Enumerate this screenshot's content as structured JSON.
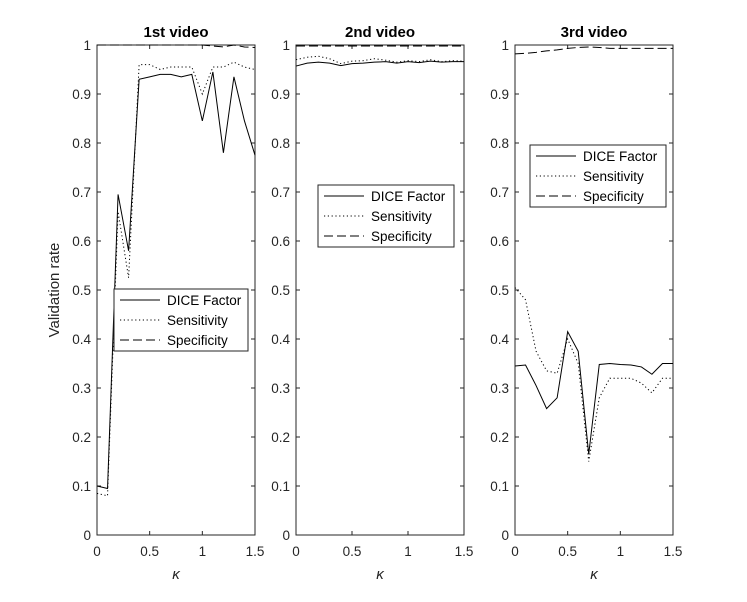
{
  "figure": {
    "ylabel": "Validation rate"
  },
  "chart_data": [
    {
      "type": "line",
      "title": "1st video",
      "xlabel": "κ",
      "xlim": [
        0,
        1.5
      ],
      "ylim": [
        0,
        1
      ],
      "xticks": [
        "0",
        "0.5",
        "1",
        "1.5"
      ],
      "yticks": [
        "0",
        "0.1",
        "0.2",
        "0.3",
        "0.4",
        "0.5",
        "0.6",
        "0.7",
        "0.8",
        "0.9",
        "1"
      ],
      "legend_position": "lower-right",
      "series": [
        {
          "name": "DICE Factor",
          "style": "solid",
          "x": [
            0,
            0.1,
            0.2,
            0.3,
            0.4,
            0.5,
            0.6,
            0.7,
            0.8,
            0.9,
            1.0,
            1.1,
            1.2,
            1.3,
            1.4,
            1.5
          ],
          "y": [
            0.1,
            0.095,
            0.695,
            0.58,
            0.93,
            0.935,
            0.94,
            0.94,
            0.935,
            0.94,
            0.845,
            0.945,
            0.78,
            0.935,
            0.845,
            0.775
          ]
        },
        {
          "name": "Sensitivity",
          "style": "dotted",
          "x": [
            0,
            0.1,
            0.2,
            0.3,
            0.4,
            0.5,
            0.6,
            0.7,
            0.8,
            0.9,
            1.0,
            1.1,
            1.2,
            1.3,
            1.4,
            1.5
          ],
          "y": [
            0.085,
            0.08,
            0.66,
            0.525,
            0.96,
            0.96,
            0.95,
            0.955,
            0.955,
            0.955,
            0.9,
            0.955,
            0.955,
            0.965,
            0.955,
            0.95
          ]
        },
        {
          "name": "Specificity",
          "style": "dashed",
          "x": [
            0,
            0.1,
            0.2,
            0.3,
            0.4,
            0.5,
            0.6,
            0.7,
            0.8,
            0.9,
            1.0,
            1.1,
            1.2,
            1.3,
            1.4,
            1.5
          ],
          "y": [
            1.0,
            1.0,
            1.0,
            1.0,
            1.0,
            1.0,
            1.0,
            1.0,
            1.0,
            1.0,
            1.0,
            0.998,
            0.996,
            1.0,
            0.996,
            0.995
          ]
        }
      ]
    },
    {
      "type": "line",
      "title": "2nd video",
      "xlabel": "κ",
      "xlim": [
        0,
        1.5
      ],
      "ylim": [
        0,
        1
      ],
      "xticks": [
        "0",
        "0.5",
        "1",
        "1.5"
      ],
      "yticks": [
        "0",
        "0.1",
        "0.2",
        "0.3",
        "0.4",
        "0.5",
        "0.6",
        "0.7",
        "0.8",
        "0.9",
        "1"
      ],
      "legend_position": "upper-center",
      "series": [
        {
          "name": "DICE Factor",
          "style": "solid",
          "x": [
            0,
            0.1,
            0.2,
            0.3,
            0.4,
            0.5,
            0.6,
            0.7,
            0.8,
            0.9,
            1.0,
            1.1,
            1.2,
            1.3,
            1.4,
            1.5
          ],
          "y": [
            0.957,
            0.963,
            0.965,
            0.963,
            0.958,
            0.962,
            0.963,
            0.965,
            0.966,
            0.963,
            0.966,
            0.964,
            0.967,
            0.965,
            0.966,
            0.966
          ]
        },
        {
          "name": "Sensitivity",
          "style": "dotted",
          "x": [
            0,
            0.1,
            0.2,
            0.3,
            0.4,
            0.5,
            0.6,
            0.7,
            0.8,
            0.9,
            1.0,
            1.1,
            1.2,
            1.3,
            1.4,
            1.5
          ],
          "y": [
            0.97,
            0.975,
            0.977,
            0.972,
            0.962,
            0.967,
            0.968,
            0.972,
            0.969,
            0.965,
            0.968,
            0.966,
            0.97,
            0.966,
            0.968,
            0.967
          ]
        },
        {
          "name": "Specificity",
          "style": "dashed",
          "x": [
            0,
            0.1,
            0.2,
            0.3,
            0.4,
            0.5,
            0.6,
            0.7,
            0.8,
            0.9,
            1.0,
            1.1,
            1.2,
            1.3,
            1.4,
            1.5
          ],
          "y": [
            0.998,
            0.998,
            0.998,
            0.998,
            0.998,
            0.998,
            0.998,
            0.998,
            0.998,
            0.998,
            0.998,
            0.998,
            0.998,
            0.998,
            0.998,
            0.998
          ]
        }
      ]
    },
    {
      "type": "line",
      "title": "3rd video",
      "xlabel": "κ",
      "xlim": [
        0,
        1.5
      ],
      "ylim": [
        0,
        1
      ],
      "xticks": [
        "0",
        "0.5",
        "1",
        "1.5"
      ],
      "yticks": [
        "0",
        "0.1",
        "0.2",
        "0.3",
        "0.4",
        "0.5",
        "0.6",
        "0.7",
        "0.8",
        "0.9",
        "1"
      ],
      "legend_position": "upper-center",
      "series": [
        {
          "name": "DICE Factor",
          "style": "solid",
          "x": [
            0,
            0.1,
            0.2,
            0.3,
            0.4,
            0.5,
            0.6,
            0.7,
            0.8,
            0.9,
            1.0,
            1.1,
            1.2,
            1.3,
            1.4,
            1.5
          ],
          "y": [
            0.345,
            0.347,
            0.305,
            0.258,
            0.28,
            0.415,
            0.375,
            0.165,
            0.348,
            0.35,
            0.348,
            0.347,
            0.343,
            0.328,
            0.35,
            0.35
          ]
        },
        {
          "name": "Sensitivity",
          "style": "dotted",
          "x": [
            0,
            0.1,
            0.2,
            0.3,
            0.4,
            0.5,
            0.6,
            0.7,
            0.8,
            0.9,
            1.0,
            1.1,
            1.2,
            1.3,
            1.4,
            1.5
          ],
          "y": [
            0.505,
            0.48,
            0.375,
            0.335,
            0.33,
            0.4,
            0.35,
            0.15,
            0.28,
            0.32,
            0.32,
            0.32,
            0.31,
            0.29,
            0.32,
            0.32
          ]
        },
        {
          "name": "Specificity",
          "style": "dashed",
          "x": [
            0,
            0.1,
            0.2,
            0.3,
            0.4,
            0.5,
            0.6,
            0.7,
            0.8,
            0.9,
            1.0,
            1.1,
            1.2,
            1.3,
            1.4,
            1.5
          ],
          "y": [
            0.982,
            0.983,
            0.985,
            0.988,
            0.99,
            0.993,
            0.995,
            0.996,
            0.995,
            0.993,
            0.993,
            0.993,
            0.993,
            0.993,
            0.993,
            0.993
          ]
        }
      ]
    }
  ]
}
